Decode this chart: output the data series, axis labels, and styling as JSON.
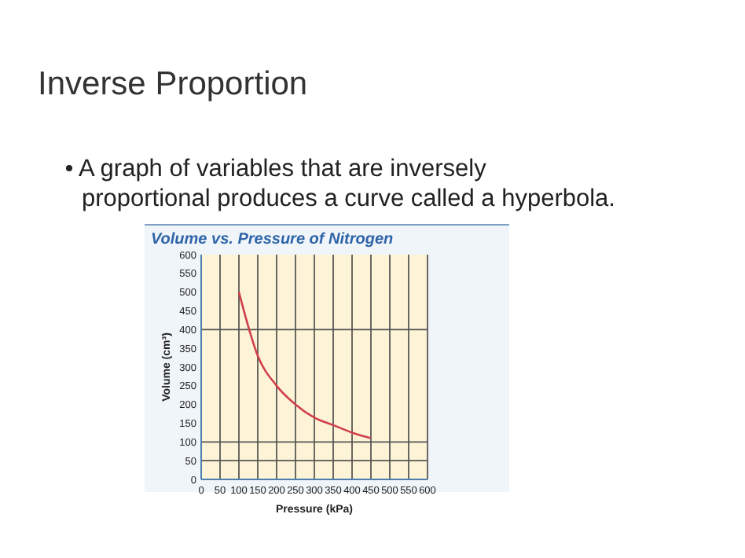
{
  "chart_data": {
    "type": "line",
    "title": "Volume vs. Pressure of Nitrogen",
    "xlabel": "Pressure (kPa)",
    "ylabel": "Volume (cm³)",
    "annotations": [
      "Inverse Proportion",
      "A graph of variables that are inversely proportional produces a curve called a hyperbola."
    ],
    "x": [
      100,
      150,
      200,
      250,
      300,
      350,
      400,
      450
    ],
    "series": [
      {
        "color": "#d0404a",
        "values": [
          500,
          330,
          250,
          200,
          165,
          145,
          125,
          110
        ]
      }
    ],
    "xlim": [
      0,
      600
    ],
    "xticks": [
      0,
      50,
      100,
      150,
      200,
      250,
      300,
      350,
      400,
      450,
      500,
      550,
      600
    ],
    "ylim": [
      0,
      600
    ],
    "yticks": [
      0,
      50,
      100,
      150,
      200,
      250,
      300,
      350,
      400,
      450,
      500,
      550,
      600
    ],
    "grid": "x",
    "marker": "none",
    "line_style": "solid",
    "ref_lines": [
      {
        "axis": "y",
        "value": 50,
        "color": "#555555"
      },
      {
        "axis": "y",
        "value": 100,
        "color": "#555555"
      },
      {
        "axis": "y",
        "value": 400,
        "color": "#555555"
      }
    ]
  }
}
